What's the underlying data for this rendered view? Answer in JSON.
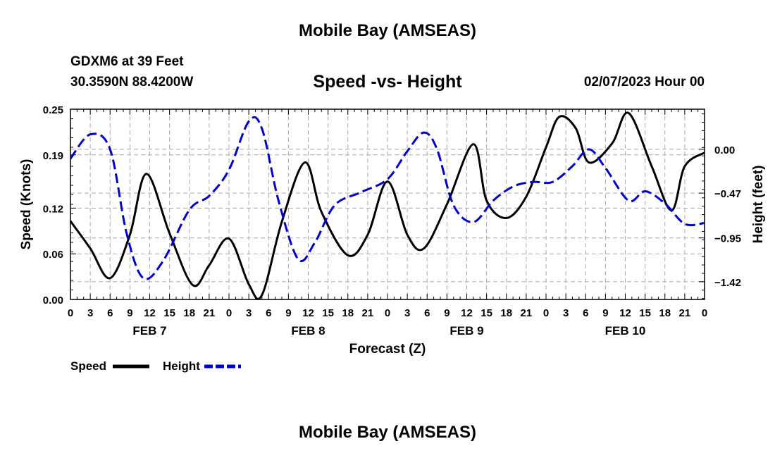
{
  "header": {
    "title": "Mobile Bay (AMSEAS)",
    "station": "GDXM6 at 39 Feet",
    "coords": "30.3590N  88.4200W",
    "chart_title": "Speed -vs- Height",
    "datetime": "02/07/2023 Hour 00",
    "repeat_title": "Mobile Bay (AMSEAS)"
  },
  "chart_data": {
    "type": "line",
    "title": "Speed -vs- Height",
    "xlabel": "Forecast (Z)",
    "ylabel": "Speed (Knots)",
    "y2label": "Height (feet)",
    "x_hours": [
      0,
      3,
      6,
      9,
      12,
      15,
      18,
      21,
      24,
      27,
      30,
      33,
      36,
      39,
      42,
      45,
      48,
      51,
      54,
      57,
      60,
      63,
      66,
      69,
      72,
      75,
      78,
      81,
      84,
      87,
      90,
      93,
      96
    ],
    "x_tick_labels": [
      "0",
      "3",
      "6",
      "9",
      "12",
      "15",
      "18",
      "21",
      "0",
      "3",
      "6",
      "9",
      "12",
      "15",
      "18",
      "21",
      "0",
      "3",
      "6",
      "9",
      "12",
      "15",
      "18",
      "21",
      "0",
      "3",
      "6",
      "9",
      "12",
      "15",
      "18",
      "21",
      "0"
    ],
    "day_labels": [
      {
        "label": "FEB 7",
        "hour": 12
      },
      {
        "label": "FEB 8",
        "hour": 36
      },
      {
        "label": "FEB 9",
        "hour": 60
      },
      {
        "label": "FEB 10",
        "hour": 84
      }
    ],
    "ylim": [
      0,
      0.25
    ],
    "y_ticks": [
      "0.00",
      "0.06",
      "0.12",
      "0.19",
      "0.25"
    ],
    "y2lim": [
      -1.61,
      0.43
    ],
    "y2_ticks": [
      "0.00",
      "-0.47",
      "-0.95",
      "-1.42"
    ],
    "grid": true,
    "series": [
      {
        "name": "Speed",
        "color": "#000000",
        "dash": "solid",
        "axis": "left",
        "points": [
          [
            0,
            0.103
          ],
          [
            3,
            0.067
          ],
          [
            6,
            0.028
          ],
          [
            9,
            0.085
          ],
          [
            11.5,
            0.165
          ],
          [
            15,
            0.087
          ],
          [
            18.5,
            0.019
          ],
          [
            21,
            0.045
          ],
          [
            24,
            0.08
          ],
          [
            27,
            0.02
          ],
          [
            29,
            0.006
          ],
          [
            32,
            0.102
          ],
          [
            35.5,
            0.18
          ],
          [
            38,
            0.115
          ],
          [
            42,
            0.058
          ],
          [
            45,
            0.085
          ],
          [
            48,
            0.155
          ],
          [
            51,
            0.085
          ],
          [
            53.5,
            0.067
          ],
          [
            57,
            0.125
          ],
          [
            61,
            0.204
          ],
          [
            63,
            0.13
          ],
          [
            66,
            0.107
          ],
          [
            69,
            0.135
          ],
          [
            72,
            0.2
          ],
          [
            74,
            0.24
          ],
          [
            76.5,
            0.225
          ],
          [
            78.5,
            0.18
          ],
          [
            82,
            0.205
          ],
          [
            84.5,
            0.245
          ],
          [
            88,
            0.175
          ],
          [
            91,
            0.117
          ],
          [
            93,
            0.175
          ],
          [
            96,
            0.193
          ]
        ]
      },
      {
        "name": "Height",
        "color": "#0000cc",
        "dash": "dashed",
        "axis": "right",
        "points": [
          [
            0,
            -0.1
          ],
          [
            3,
            0.16
          ],
          [
            6,
            0.0
          ],
          [
            8.5,
            -0.9
          ],
          [
            11,
            -1.38
          ],
          [
            14,
            -1.2
          ],
          [
            18,
            -0.65
          ],
          [
            21,
            -0.5
          ],
          [
            24,
            -0.22
          ],
          [
            27,
            0.3
          ],
          [
            29,
            0.22
          ],
          [
            31.5,
            -0.55
          ],
          [
            34.5,
            -1.18
          ],
          [
            37,
            -1.0
          ],
          [
            40,
            -0.6
          ],
          [
            44,
            -0.46
          ],
          [
            48,
            -0.32
          ],
          [
            51,
            -0.02
          ],
          [
            53.5,
            0.18
          ],
          [
            55.5,
            0.0
          ],
          [
            58,
            -0.6
          ],
          [
            61,
            -0.78
          ],
          [
            64,
            -0.55
          ],
          [
            67,
            -0.4
          ],
          [
            70,
            -0.35
          ],
          [
            73,
            -0.35
          ],
          [
            76,
            -0.18
          ],
          [
            78.5,
            0.0
          ],
          [
            81,
            -0.2
          ],
          [
            84.5,
            -0.55
          ],
          [
            87,
            -0.45
          ],
          [
            90,
            -0.58
          ],
          [
            93,
            -0.8
          ],
          [
            96,
            -0.79
          ]
        ]
      }
    ]
  },
  "legend": {
    "speed_label": "Speed",
    "height_label": "Height"
  }
}
